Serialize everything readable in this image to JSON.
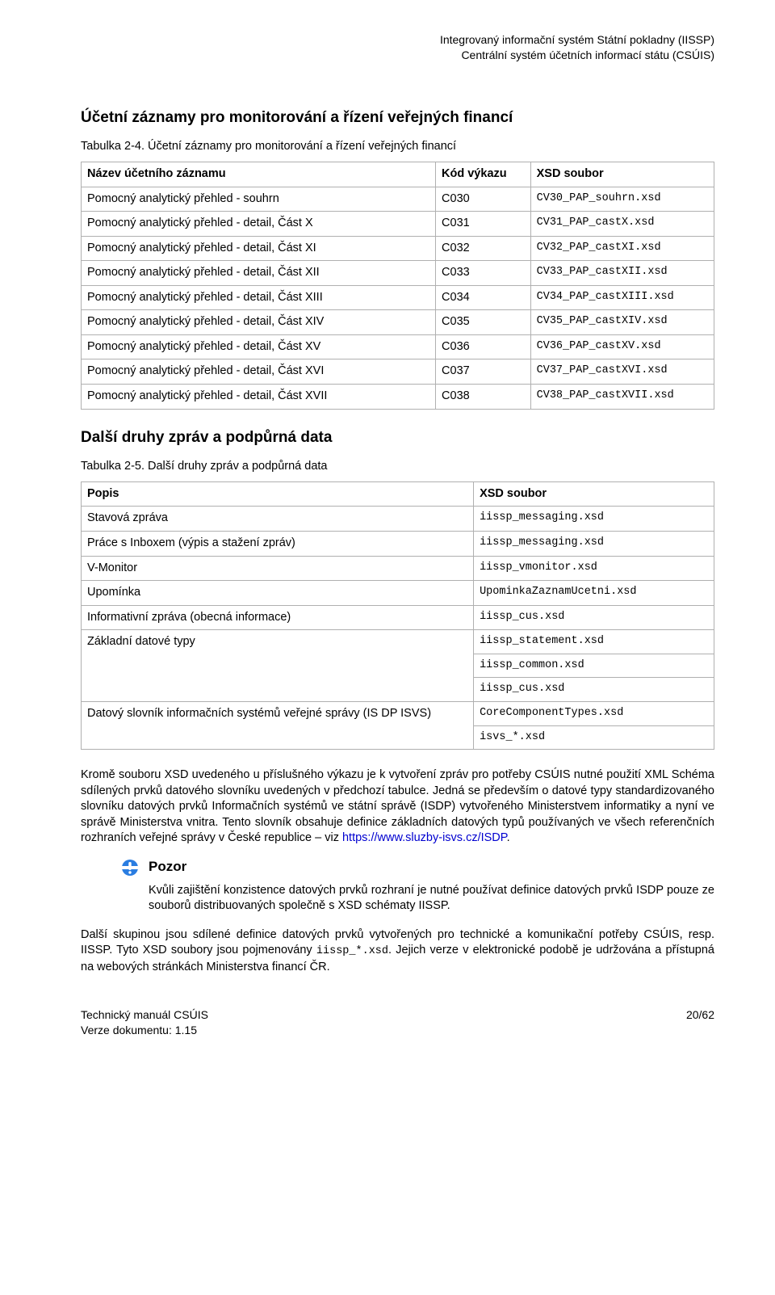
{
  "header": {
    "line1": "Integrovaný informační systém Státní pokladny (IISSP)",
    "line2": "Centrální systém účetních informací státu (CSÚIS)"
  },
  "section1": {
    "title": "Účetní záznamy pro monitorování a řízení veřejných financí",
    "caption": "Tabulka 2-4. Účetní záznamy pro monitorování a řízení veřejných financí",
    "headers": {
      "name": "Název účetního záznamu",
      "code": "Kód výkazu",
      "xsd": "XSD soubor"
    },
    "rows": [
      {
        "name": "Pomocný analytický přehled - souhrn",
        "code": "C030",
        "xsd": "CV30_PAP_souhrn.xsd"
      },
      {
        "name": "Pomocný analytický přehled - detail, Část X",
        "code": "C031",
        "xsd": "CV31_PAP_castX.xsd"
      },
      {
        "name": "Pomocný analytický přehled - detail, Část XI",
        "code": "C032",
        "xsd": "CV32_PAP_castXI.xsd"
      },
      {
        "name": "Pomocný analytický přehled - detail, Část XII",
        "code": "C033",
        "xsd": "CV33_PAP_castXII.xsd"
      },
      {
        "name": "Pomocný analytický přehled - detail, Část XIII",
        "code": "C034",
        "xsd": "CV34_PAP_castXIII.xsd"
      },
      {
        "name": "Pomocný analytický přehled - detail, Část XIV",
        "code": "C035",
        "xsd": "CV35_PAP_castXIV.xsd"
      },
      {
        "name": "Pomocný analytický přehled - detail, Část XV",
        "code": "C036",
        "xsd": "CV36_PAP_castXV.xsd"
      },
      {
        "name": "Pomocný analytický přehled - detail, Část XVI",
        "code": "C037",
        "xsd": "CV37_PAP_castXVI.xsd"
      },
      {
        "name": "Pomocný analytický přehled - detail, Část XVII",
        "code": "C038",
        "xsd": "CV38_PAP_castXVII.xsd"
      }
    ]
  },
  "section2": {
    "title": "Další druhy zpráv a podpůrná data",
    "caption": "Tabulka 2-5. Další druhy zpráv a podpůrná data",
    "headers": {
      "popis": "Popis",
      "xsd": "XSD soubor"
    },
    "rows": [
      {
        "popis": "Stavová zpráva",
        "xsd": "iissp_messaging.xsd"
      },
      {
        "popis": "Práce s Inboxem (výpis a stažení zpráv)",
        "xsd": "iissp_messaging.xsd"
      },
      {
        "popis": "V-Monitor",
        "xsd": "iissp_vmonitor.xsd"
      },
      {
        "popis": "Upomínka",
        "xsd": "UpominkaZaznamUcetni.xsd"
      },
      {
        "popis": "Informativní zpráva (obecná informace)",
        "xsd": "iissp_cus.xsd"
      },
      {
        "popis": "Základní datové typy",
        "xsd": "iissp_statement.xsd"
      },
      {
        "popis": "",
        "xsd": "iissp_common.xsd"
      },
      {
        "popis": "",
        "xsd": "iissp_cus.xsd"
      },
      {
        "popis": "Datový slovník informačních systémů veřejné správy (IS DP ISVS)",
        "xsd": "CoreComponentTypes.xsd"
      },
      {
        "popis": "",
        "xsd": "isvs_*.xsd"
      }
    ]
  },
  "para1_a": "Kromě souboru XSD uvedeného u příslušného výkazu je k vytvoření zpráv pro potřeby CSÚIS nutné použití XML Schéma sdílených prvků datového slovníku uvedených v předchozí tabulce. Jedná se především o datové typy standardizovaného slovníku datových prvků Informačních systémů ve státní správě (ISDP) vytvořeného Ministerstvem informatiky a nyní ve správě Ministerstva vnitra. Tento slovník obsahuje definice základních datových typů používaných ve všech referenčních rozhraních veřejné správy v České republice – viz ",
  "para1_link": "https://www.sluzby-isvs.cz/ISDP",
  "para1_b": ".",
  "note": {
    "title": "Pozor",
    "body": "Kvůli zajištění konzistence datových prvků rozhraní je nutné používat definice datových prvků ISDP pouze ze souborů distribuovaných společně s XSD schématy IISSP."
  },
  "para2_a": "Další skupinou jsou sdílené definice datových prvků vytvořených pro technické a komunikační potřeby CSÚIS, resp. IISSP. Tyto XSD soubory jsou pojmenovány ",
  "para2_mono": "iissp_*.xsd",
  "para2_b": ". Jejich verze v elektronické podobě je udržována a přístupná na webových stránkách Ministerstva financí ČR.",
  "footer": {
    "left1": "Technický manuál CSÚIS",
    "left2": "Verze dokumentu: 1.15",
    "right": "20/62"
  },
  "colors": {
    "text": "#000000",
    "border": "#b0b0b0",
    "link": "#0000d0",
    "icon_blue": "#2a7de1",
    "icon_band": "#ffffff",
    "background": "#ffffff"
  }
}
